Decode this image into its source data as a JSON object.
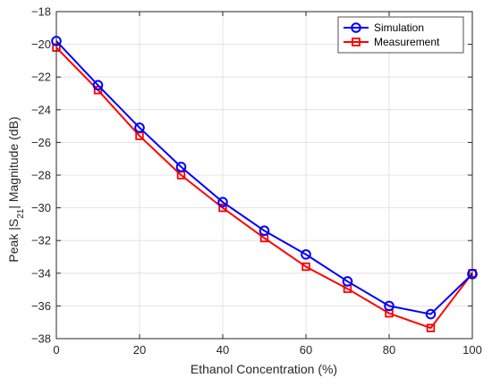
{
  "chart_data": {
    "type": "line",
    "xlabel": "Ethanol Concentration (%)",
    "ylabel_main": "Peak |S",
    "ylabel_sub": "21",
    "ylabel_tail": "| Magnitude (dB)",
    "xlim": [
      0,
      100
    ],
    "ylim": [
      -38,
      -18
    ],
    "x_ticks": [
      0,
      20,
      40,
      60,
      80,
      100
    ],
    "y_ticks": [
      -38,
      -36,
      -34,
      -32,
      -30,
      -28,
      -26,
      -24,
      -22,
      -20,
      -18
    ],
    "x_tick_labels": [
      "0",
      "20",
      "40",
      "60",
      "80",
      "100"
    ],
    "y_tick_labels": [
      "−38",
      "−36",
      "−34",
      "−32",
      "−30",
      "−28",
      "−26",
      "−24",
      "−22",
      "−20",
      "−18"
    ],
    "grid": true,
    "legend_position": "top-right",
    "x": [
      0,
      10,
      20,
      30,
      40,
      50,
      60,
      70,
      80,
      90,
      100
    ],
    "series": [
      {
        "name": "Simulation",
        "marker": "circle",
        "color": "#0000ff",
        "values": [
          -19.8,
          -22.5,
          -25.1,
          -27.5,
          -29.65,
          -31.4,
          -32.85,
          -34.5,
          -36.0,
          -36.5,
          -34.05
        ]
      },
      {
        "name": "Measurement",
        "marker": "square",
        "color": "#ff0000",
        "values": [
          -20.2,
          -22.8,
          -25.6,
          -28.0,
          -30.0,
          -31.85,
          -33.6,
          -34.95,
          -36.45,
          -37.35,
          -34.0
        ]
      }
    ]
  }
}
